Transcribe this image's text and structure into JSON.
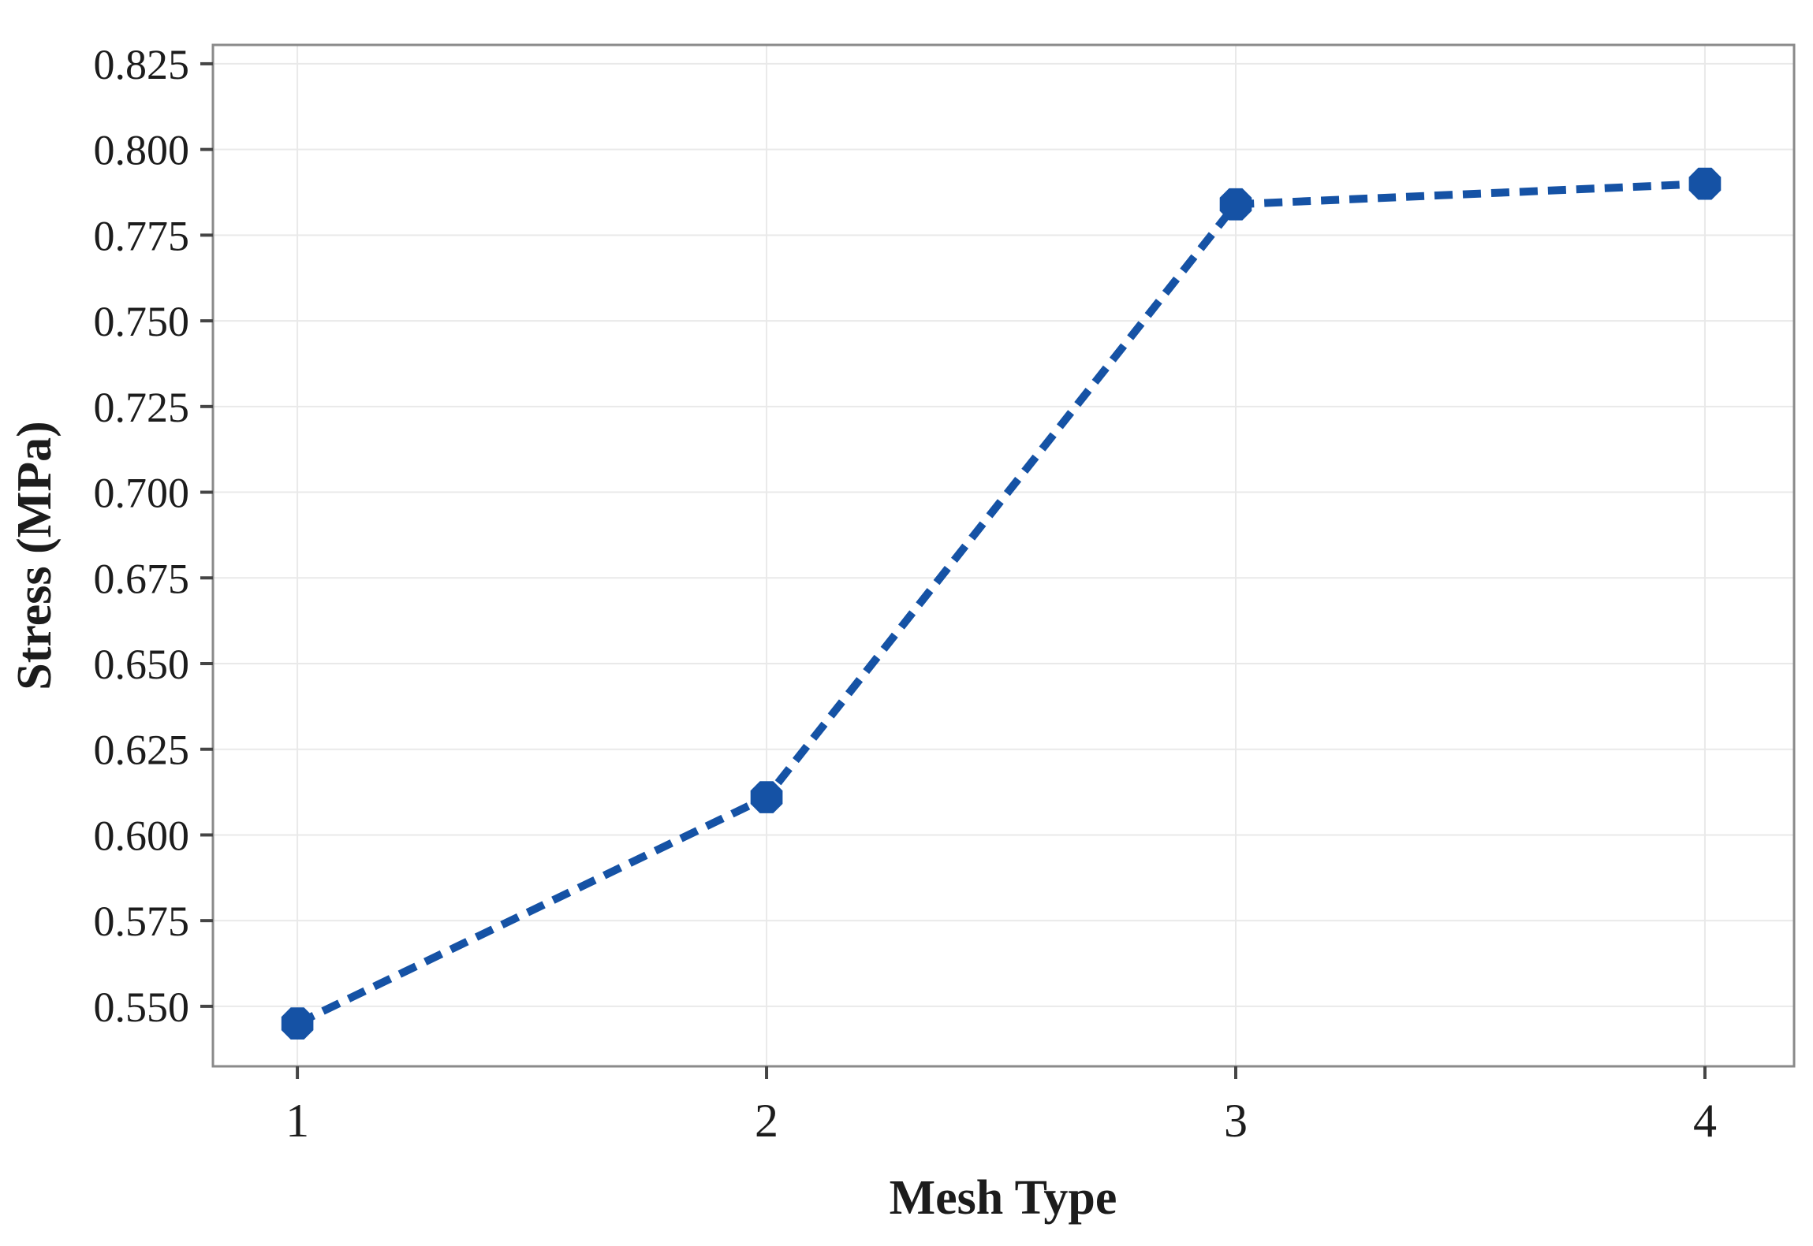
{
  "chart_data": {
    "type": "line",
    "title": "",
    "xlabel": "Mesh Type",
    "ylabel": "Stress (MPa)",
    "x": [
      1,
      2,
      3,
      4
    ],
    "series": [
      {
        "name": "Stress",
        "values": [
          0.545,
          0.611,
          0.784,
          0.79
        ]
      }
    ],
    "xlim": [
      0.82,
      4.19
    ],
    "ylim": [
      0.5325,
      0.8305
    ],
    "x_ticks": [
      1,
      2,
      3,
      4
    ],
    "x_tick_labels": [
      "1",
      "2",
      "3",
      "4"
    ],
    "y_ticks": [
      0.55,
      0.575,
      0.6,
      0.625,
      0.65,
      0.675,
      0.7,
      0.725,
      0.75,
      0.775,
      0.8,
      0.825
    ],
    "y_tick_labels": [
      "0.550",
      "0.575",
      "0.600",
      "0.625",
      "0.650",
      "0.675",
      "0.700",
      "0.725",
      "0.750",
      "0.775",
      "0.800",
      "0.825"
    ],
    "grid": true,
    "legend": false,
    "line_style": "dashed",
    "marker": "octagon",
    "marker_radius": 22,
    "line_width": 10,
    "dash_pattern": "23 13",
    "colors": {
      "line": "#1552a5",
      "marker": "#1552a5",
      "grid": "#e9e9e9",
      "border": "#8a8a8a",
      "tick": "#454545",
      "text": "#1c1c1c"
    }
  }
}
